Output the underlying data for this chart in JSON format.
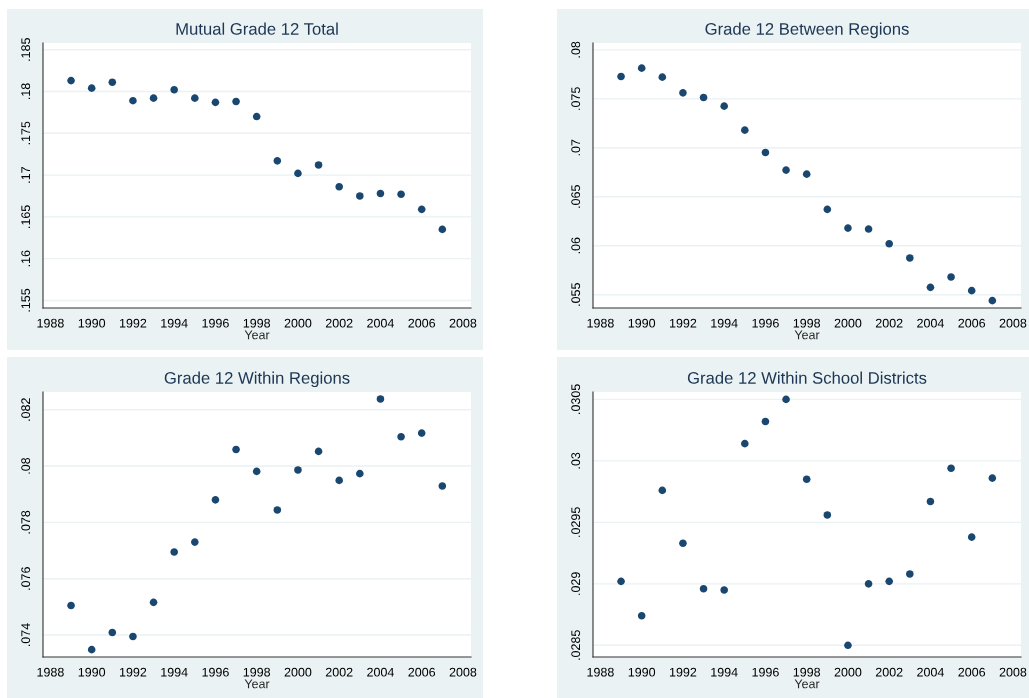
{
  "chart_data": [
    {
      "type": "scatter",
      "title": "Mutual Grade 12 Total",
      "xlabel": "Year",
      "x": [
        1989,
        1990,
        1991,
        1992,
        1993,
        1994,
        1995,
        1996,
        1997,
        1998,
        1999,
        2000,
        2001,
        2002,
        2003,
        2004,
        2005,
        2006,
        2007
      ],
      "series": [
        {
          "color": "#1a476f",
          "values": [
            0.1813,
            0.1804,
            0.1811,
            0.1789,
            0.1792,
            0.1802,
            0.1792,
            0.1787,
            0.1788,
            0.177,
            0.1717,
            0.1702,
            0.1712,
            0.1686,
            0.1675,
            0.1678,
            0.1677,
            0.1659,
            0.1635
          ]
        }
      ],
      "xlim": [
        1987.64,
        2008.39
      ],
      "xticks": [
        1988,
        1990,
        1992,
        1994,
        1996,
        1998,
        2000,
        2002,
        2004,
        2006,
        2008
      ],
      "ylim": [
        0.1541,
        0.1858
      ],
      "yticks": [
        {
          "value": 0.155,
          "label": ".155"
        },
        {
          "value": 0.16,
          "label": ".16"
        },
        {
          "value": 0.165,
          "label": ".165"
        },
        {
          "value": 0.17,
          "label": ".17"
        },
        {
          "value": 0.175,
          "label": ".175"
        },
        {
          "value": 0.18,
          "label": ".18"
        },
        {
          "value": 0.185,
          "label": ".185"
        }
      ],
      "grid": "y",
      "marker": "circle"
    },
    {
      "type": "scatter",
      "title": "Grade 12 Between Regions",
      "xlabel": "Year",
      "x": [
        1989,
        1990,
        1991,
        1992,
        1993,
        1994,
        1995,
        1996,
        1997,
        1998,
        1999,
        2000,
        2001,
        2002,
        2003,
        2004,
        2005,
        2006,
        2007
      ],
      "series": [
        {
          "color": "#1a476f",
          "values": [
            0.07728,
            0.07813,
            0.07721,
            0.07561,
            0.07514,
            0.07425,
            0.0718,
            0.06952,
            0.06772,
            0.06731,
            0.06371,
            0.0618,
            0.0617,
            0.0602,
            0.05874,
            0.05575,
            0.0568,
            0.05541,
            0.05439
          ]
        }
      ],
      "xlim": [
        1987.64,
        2008.39
      ],
      "xticks": [
        1988,
        1990,
        1992,
        1994,
        1996,
        1998,
        2000,
        2002,
        2004,
        2006,
        2008
      ],
      "ylim": [
        0.05364,
        0.0807
      ],
      "yticks": [
        {
          "value": 0.055,
          "label": ".055"
        },
        {
          "value": 0.06,
          "label": ".06"
        },
        {
          "value": 0.065,
          "label": ".065"
        },
        {
          "value": 0.07,
          "label": ".07"
        },
        {
          "value": 0.075,
          "label": ".075"
        },
        {
          "value": 0.08,
          "label": ".08"
        }
      ],
      "grid": "y",
      "marker": "circle"
    },
    {
      "type": "scatter",
      "title": "Grade 12 Within Regions",
      "xlabel": "Year",
      "x": [
        1989,
        1990,
        1991,
        1992,
        1993,
        1994,
        1995,
        1996,
        1997,
        1998,
        1999,
        2000,
        2001,
        2002,
        2003,
        2004,
        2005,
        2006,
        2007
      ],
      "series": [
        {
          "color": "#1a476f",
          "values": [
            0.07505,
            0.07348,
            0.07409,
            0.07395,
            0.07516,
            0.07695,
            0.0773,
            0.0788,
            0.08059,
            0.07981,
            0.07844,
            0.07986,
            0.08052,
            0.07949,
            0.07973,
            0.08238,
            0.08104,
            0.08117,
            0.07929
          ]
        }
      ],
      "xlim": [
        1987.64,
        2008.39
      ],
      "xticks": [
        1988,
        1990,
        1992,
        1994,
        1996,
        1998,
        2000,
        2002,
        2004,
        2006,
        2008
      ],
      "ylim": [
        0.07322,
        0.08263
      ],
      "yticks": [
        {
          "value": 0.074,
          "label": ".074"
        },
        {
          "value": 0.076,
          "label": ".076"
        },
        {
          "value": 0.078,
          "label": ".078"
        },
        {
          "value": 0.08,
          "label": ".08"
        },
        {
          "value": 0.082,
          "label": ".082"
        }
      ],
      "grid": "y",
      "marker": "circle"
    },
    {
      "type": "scatter",
      "title": "Grade 12 Within School Districts",
      "xlabel": "Year",
      "x": [
        1989,
        1990,
        1991,
        1992,
        1993,
        1994,
        1995,
        1996,
        1997,
        1998,
        1999,
        2000,
        2001,
        2002,
        2003,
        2004,
        2005,
        2006,
        2007
      ],
      "series": [
        {
          "color": "#1a476f",
          "values": [
            0.02902,
            0.02874,
            0.02976,
            0.02933,
            0.02896,
            0.02895,
            0.03014,
            0.03032,
            0.0305,
            0.02985,
            0.02956,
            0.0285,
            0.029,
            0.02902,
            0.02908,
            0.02967,
            0.02994,
            0.02938,
            0.02986
          ]
        }
      ],
      "xlim": [
        1987.64,
        2008.39
      ],
      "xticks": [
        1988,
        1990,
        1992,
        1994,
        1996,
        1998,
        2000,
        2002,
        2004,
        2006,
        2008
      ],
      "ylim": [
        0.028405,
        0.03056
      ],
      "yticks": [
        {
          "value": 0.0285,
          "label": ".0285"
        },
        {
          "value": 0.029,
          "label": ".029"
        },
        {
          "value": 0.0295,
          "label": ".0295"
        },
        {
          "value": 0.03,
          "label": ".03"
        },
        {
          "value": 0.0305,
          "label": ".0305"
        }
      ],
      "grid": "y",
      "marker": "circle"
    }
  ]
}
